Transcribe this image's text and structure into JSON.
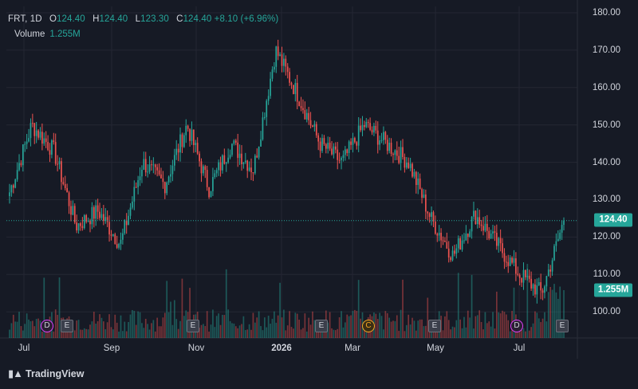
{
  "legend": {
    "symbol": "FRT",
    "interval": "1D",
    "open_label": "O",
    "open": "124.40",
    "high_label": "H",
    "high": "124.40",
    "low_label": "L",
    "low": "123.30",
    "close_label": "C",
    "close": "124.40",
    "change": "+8.10 (+6.96%)",
    "volume_label": "Volume",
    "volume": "1.255M"
  },
  "colors": {
    "background": "#161a25",
    "up": "#26a69a",
    "down": "#ef5350",
    "text": "#d1d4dc",
    "grid": "#242733",
    "dividend_marker": "#e040fb",
    "split_marker": "#f5a623"
  },
  "price_badge": "124.40",
  "volume_badge": "1.255M",
  "branding": "TradingView",
  "events": [
    {
      "type": "d",
      "label": "D",
      "month": "Jul"
    },
    {
      "type": "e",
      "label": "E",
      "month": "Aug"
    },
    {
      "type": "e",
      "label": "E",
      "month": "Oct"
    },
    {
      "type": "e",
      "label": "E",
      "month": "Feb"
    },
    {
      "type": "c",
      "label": "C",
      "month": "Mar"
    },
    {
      "type": "e",
      "label": "E",
      "month": "Apr"
    },
    {
      "type": "d",
      "label": "D",
      "month": "Jun"
    },
    {
      "type": "e",
      "label": "E",
      "month": "Aug"
    }
  ],
  "chart_data": {
    "type": "candlestick",
    "symbol": "FRT",
    "interval": "1D",
    "y_axis_ticks": [
      "180.00",
      "170.00",
      "160.00",
      "150.00",
      "140.00",
      "130.00",
      "120.00",
      "110.00",
      "100.00"
    ],
    "ylim": [
      95,
      180
    ],
    "x_axis_ticks": [
      "Jul",
      "Sep",
      "Nov",
      "2026",
      "Mar",
      "May",
      "Jul"
    ],
    "grid": true,
    "last_price": 124.4,
    "price_path_monthly_closes": [
      {
        "date": "Jul",
        "close": 132
      },
      {
        "date": "Aug",
        "close": 150
      },
      {
        "date": "Aug-end",
        "close": 143
      },
      {
        "date": "Sep",
        "close": 123
      },
      {
        "date": "Sep-mid",
        "close": 127
      },
      {
        "date": "Oct",
        "close": 118
      },
      {
        "date": "Oct-mid",
        "close": 140
      },
      {
        "date": "Nov",
        "close": 134
      },
      {
        "date": "Nov-mid",
        "close": 150
      },
      {
        "date": "Dec",
        "close": 133
      },
      {
        "date": "2026",
        "close": 145
      },
      {
        "date": "Jan-mid",
        "close": 138
      },
      {
        "date": "Feb",
        "close": 170
      },
      {
        "date": "Feb-mid",
        "close": 158
      },
      {
        "date": "Mar",
        "close": 145
      },
      {
        "date": "Mar-mid",
        "close": 140
      },
      {
        "date": "Apr",
        "close": 150
      },
      {
        "date": "Apr-mid",
        "close": 145
      },
      {
        "date": "May",
        "close": 140
      },
      {
        "date": "May-mid",
        "close": 125
      },
      {
        "date": "Jun",
        "close": 115
      },
      {
        "date": "Jun-end",
        "close": 126
      },
      {
        "date": "Jul",
        "close": 118
      },
      {
        "date": "Jul-mid",
        "close": 110
      },
      {
        "date": "Aug",
        "close": 105
      },
      {
        "date": "Aug-last",
        "close": 124.4
      }
    ]
  }
}
